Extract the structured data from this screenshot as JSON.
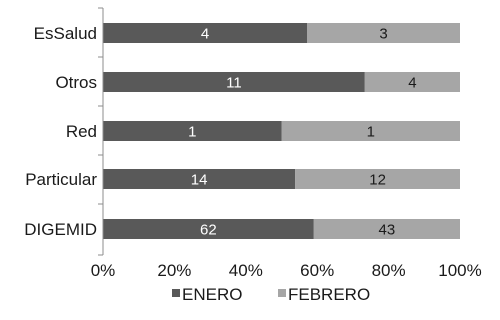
{
  "chart_data": {
    "type": "bar",
    "orientation": "horizontal",
    "stacking": "percent",
    "categories": [
      "EsSalud",
      "Otros",
      "Red",
      "Particular",
      "DIGEMID"
    ],
    "series": [
      {
        "name": "ENERO",
        "values": [
          4,
          11,
          1,
          14,
          62
        ],
        "color": "#595959",
        "label_color": "#ffffff"
      },
      {
        "name": "FEBRERO",
        "values": [
          3,
          4,
          1,
          12,
          43
        ],
        "color": "#a6a6a6",
        "label_color": "#1a1a1a"
      }
    ],
    "xlim": [
      0,
      100
    ],
    "xticks": [
      "0%",
      "20%",
      "40%",
      "60%",
      "80%",
      "100%"
    ],
    "grid": false,
    "legend": "bottom",
    "title": "",
    "xlabel": "",
    "ylabel": ""
  }
}
